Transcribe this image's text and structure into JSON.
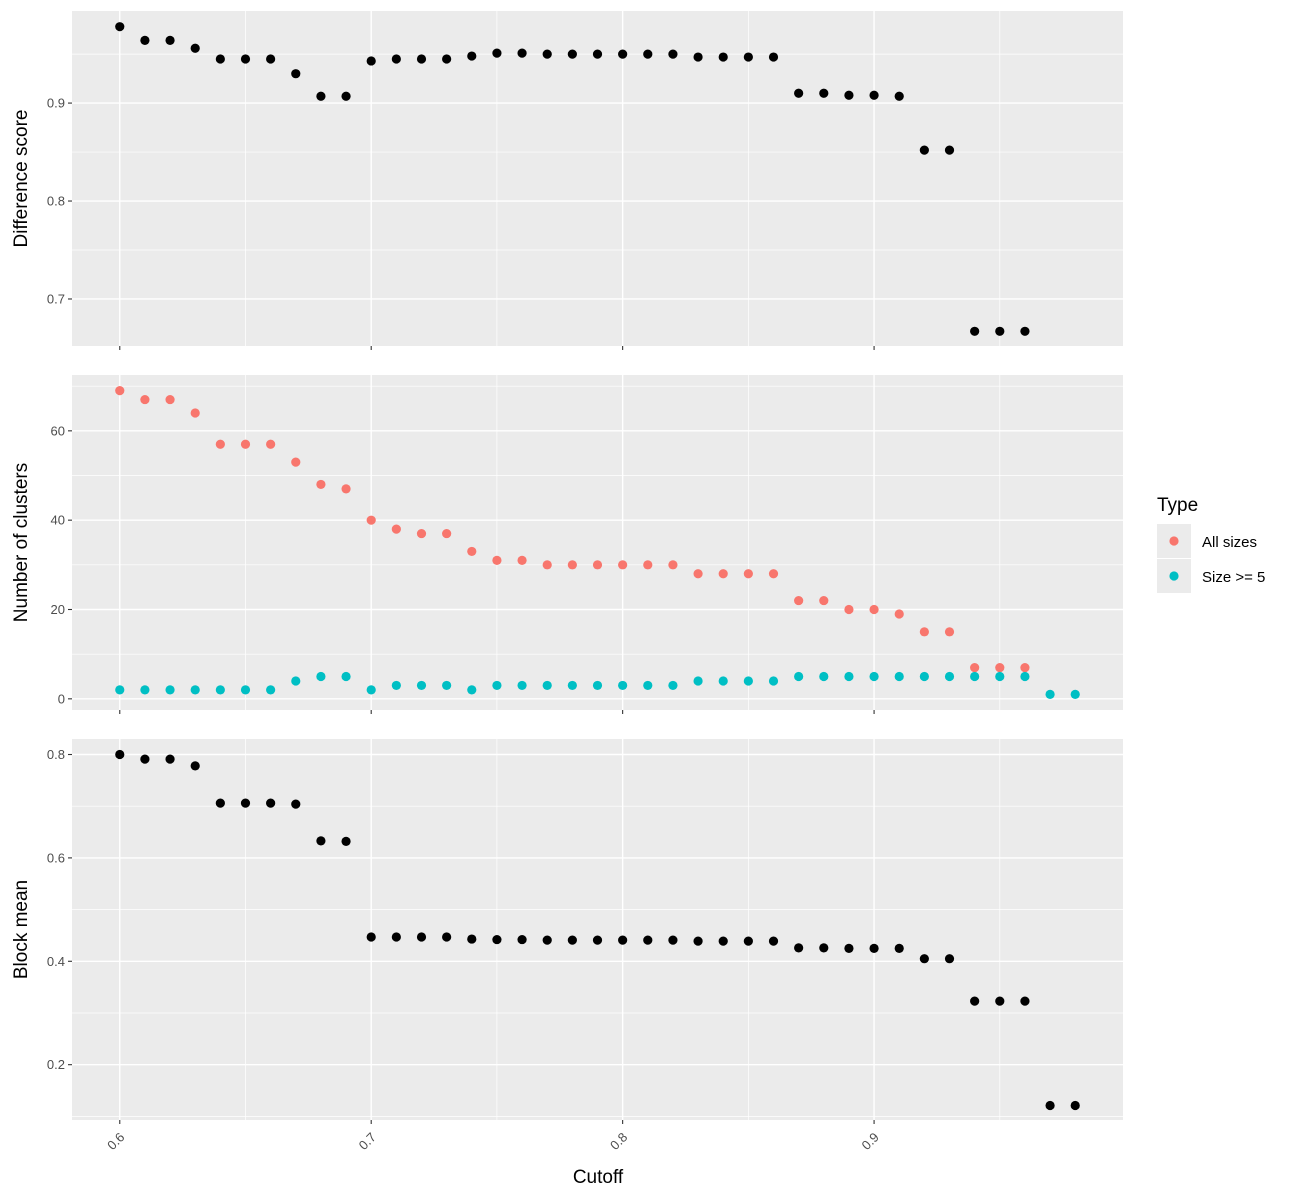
{
  "colors": {
    "panel_bg": "#EBEBEB",
    "grid": "#FFFFFF",
    "tick_text": "#4D4D4D",
    "tick_mark": "#333333",
    "point_default": "#000000"
  },
  "legend": {
    "title": "Type",
    "items": [
      {
        "label": "All sizes",
        "color": "#F8766D"
      },
      {
        "label": "Size >= 5",
        "color": "#00BFC4"
      }
    ]
  },
  "chart_data": {
    "type": "scatter",
    "xlabel": "Cutoff",
    "xlim": [
      0.581,
      0.999
    ],
    "xticks": [
      0.6,
      0.7,
      0.8,
      0.9
    ],
    "xtick_labels": [
      "0.6",
      "0.7",
      "0.8",
      "0.9"
    ],
    "grid": true,
    "facets": [
      {
        "ylabel": "Difference score",
        "ylim": [
          0.652,
          0.994
        ],
        "yticks": [
          0.7,
          0.8,
          0.9
        ],
        "ytick_labels": [
          "0.7",
          "0.8",
          "0.9"
        ],
        "series": [
          {
            "x": [
              0.6,
              0.61,
              0.62,
              0.63,
              0.64,
              0.65,
              0.66,
              0.67,
              0.68,
              0.69,
              0.7,
              0.71,
              0.72,
              0.73,
              0.74,
              0.75,
              0.76,
              0.77,
              0.78,
              0.79,
              0.8,
              0.81,
              0.82,
              0.83,
              0.84,
              0.85,
              0.86,
              0.87,
              0.88,
              0.89,
              0.9,
              0.91,
              0.92,
              0.93,
              0.94,
              0.95,
              0.96
            ],
            "y": [
              0.978,
              0.964,
              0.964,
              0.956,
              0.945,
              0.945,
              0.945,
              0.93,
              0.907,
              0.907,
              0.943,
              0.945,
              0.945,
              0.945,
              0.948,
              0.951,
              0.951,
              0.95,
              0.95,
              0.95,
              0.95,
              0.95,
              0.95,
              0.947,
              0.947,
              0.947,
              0.947,
              0.91,
              0.91,
              0.908,
              0.908,
              0.907,
              0.852,
              0.852,
              0.667,
              0.667,
              0.667
            ]
          }
        ]
      },
      {
        "ylabel": "Number of clusters",
        "ylim": [
          -2.5,
          72.5
        ],
        "yticks": [
          0,
          20,
          40,
          60
        ],
        "ytick_labels": [
          "0",
          "20",
          "40",
          "60"
        ],
        "series": [
          {
            "name": "All sizes",
            "x": [
              0.6,
              0.61,
              0.62,
              0.63,
              0.64,
              0.65,
              0.66,
              0.67,
              0.68,
              0.69,
              0.7,
              0.71,
              0.72,
              0.73,
              0.74,
              0.75,
              0.76,
              0.77,
              0.78,
              0.79,
              0.8,
              0.81,
              0.82,
              0.83,
              0.84,
              0.85,
              0.86,
              0.87,
              0.88,
              0.89,
              0.9,
              0.91,
              0.92,
              0.93,
              0.94,
              0.95,
              0.96
            ],
            "y": [
              69,
              67,
              67,
              64,
              57,
              57,
              57,
              53,
              48,
              47,
              40,
              38,
              37,
              37,
              33,
              31,
              31,
              30,
              30,
              30,
              30,
              30,
              30,
              28,
              28,
              28,
              28,
              22,
              22,
              20,
              20,
              19,
              15,
              15,
              7,
              7,
              7
            ]
          },
          {
            "name": "Size >= 5",
            "x": [
              0.6,
              0.61,
              0.62,
              0.63,
              0.64,
              0.65,
              0.66,
              0.67,
              0.68,
              0.69,
              0.7,
              0.71,
              0.72,
              0.73,
              0.74,
              0.75,
              0.76,
              0.77,
              0.78,
              0.79,
              0.8,
              0.81,
              0.82,
              0.83,
              0.84,
              0.85,
              0.86,
              0.87,
              0.88,
              0.89,
              0.9,
              0.91,
              0.92,
              0.93,
              0.94,
              0.95,
              0.96,
              0.97,
              0.98
            ],
            "y": [
              2,
              2,
              2,
              2,
              2,
              2,
              2,
              4,
              5,
              5,
              2,
              3,
              3,
              3,
              2,
              3,
              3,
              3,
              3,
              3,
              3,
              3,
              3,
              4,
              4,
              4,
              4,
              5,
              5,
              5,
              5,
              5,
              5,
              5,
              5,
              5,
              5,
              1,
              1
            ]
          }
        ]
      },
      {
        "ylabel": "Block mean",
        "ylim": [
          0.093,
          0.83
        ],
        "yticks": [
          0.2,
          0.4,
          0.6,
          0.8
        ],
        "ytick_labels": [
          "0.2",
          "0.4",
          "0.6",
          "0.8"
        ],
        "series": [
          {
            "x": [
              0.6,
              0.61,
              0.62,
              0.63,
              0.64,
              0.65,
              0.66,
              0.67,
              0.68,
              0.69,
              0.7,
              0.71,
              0.72,
              0.73,
              0.74,
              0.75,
              0.76,
              0.77,
              0.78,
              0.79,
              0.8,
              0.81,
              0.82,
              0.83,
              0.84,
              0.85,
              0.86,
              0.87,
              0.88,
              0.89,
              0.9,
              0.91,
              0.92,
              0.93,
              0.94,
              0.95,
              0.96,
              0.97,
              0.98
            ],
            "y": [
              0.8,
              0.791,
              0.791,
              0.778,
              0.706,
              0.706,
              0.706,
              0.704,
              0.633,
              0.632,
              0.447,
              0.447,
              0.447,
              0.447,
              0.443,
              0.442,
              0.442,
              0.441,
              0.441,
              0.441,
              0.441,
              0.441,
              0.441,
              0.439,
              0.439,
              0.439,
              0.439,
              0.426,
              0.426,
              0.425,
              0.425,
              0.425,
              0.405,
              0.405,
              0.323,
              0.323,
              0.323,
              0.121,
              0.121
            ]
          }
        ]
      }
    ]
  }
}
